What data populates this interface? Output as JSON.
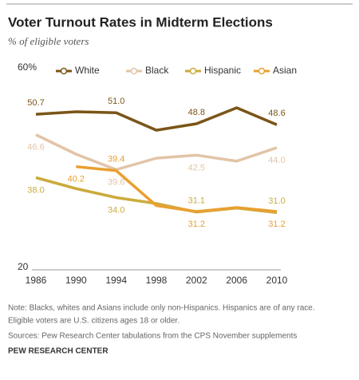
{
  "chart_data": {
    "type": "line",
    "title": "Voter Turnout Rates in Midterm Elections",
    "subtitle": "% of eligible voters",
    "x": [
      1986,
      1990,
      1994,
      1998,
      2002,
      2006,
      2010
    ],
    "xlim": [
      1986,
      2010
    ],
    "ylim": [
      20,
      60
    ],
    "yticks": [
      20,
      {
        "value": 60,
        "label": "60%"
      }
    ],
    "grid": false,
    "legend": "top",
    "series": [
      {
        "name": "White",
        "color": "#7a5518",
        "values": [
          50.7,
          51.2,
          51.0,
          47.5,
          48.8,
          52.0,
          48.6
        ],
        "value_labels": [
          "50.7",
          null,
          "51.0",
          null,
          "48.8",
          null,
          "48.6"
        ]
      },
      {
        "name": "Black",
        "color": "#e2c4a6",
        "values": [
          46.6,
          42.7,
          39.6,
          41.9,
          42.5,
          41.3,
          44.0
        ],
        "value_labels": [
          "46.6",
          null,
          "39.6",
          null,
          "42.5",
          null,
          "44.0"
        ]
      },
      {
        "name": "Hispanic",
        "color": "#cbab3c",
        "values": [
          38.0,
          35.8,
          34.0,
          32.8,
          31.1,
          31.9,
          31.0
        ],
        "value_labels": [
          "38.0",
          null,
          "34.0",
          null,
          "31.1",
          null,
          "31.0"
        ]
      },
      {
        "name": "Asian",
        "color": "#e8a031",
        "values": [
          null,
          40.2,
          39.4,
          32.4,
          31.2,
          32.0,
          31.2
        ],
        "value_labels": [
          null,
          "40.2",
          "39.4",
          null,
          "31.2",
          null,
          "31.2"
        ]
      }
    ],
    "notes": [
      "Note: Blacks, whites and Asians include only non-Hispanics. Hispanics are of any race.",
      "Eligible voters are U.S. citizens ages 18 or older."
    ],
    "source": "Sources: Pew Research Center tabulations from the CPS November supplements",
    "organization": "PEW RESEARCH CENTER"
  }
}
